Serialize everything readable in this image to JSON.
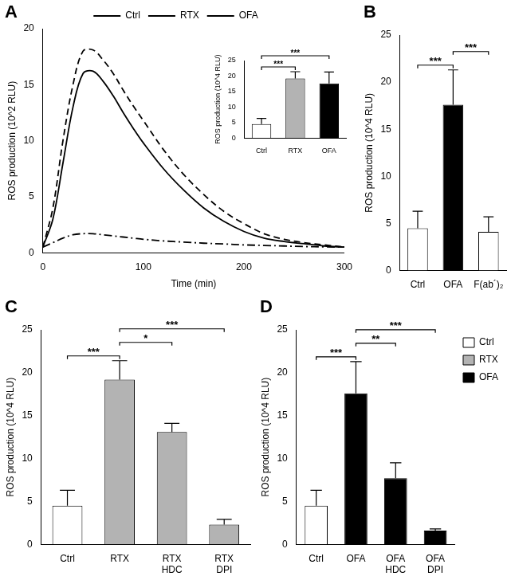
{
  "chart_data": [
    {
      "type": "line",
      "title": "A",
      "x_label": "Time (min)",
      "y_label": "ROS production (10^2 RLU)",
      "x": [
        0,
        10,
        20,
        30,
        40,
        50,
        60,
        70,
        80,
        90,
        100,
        120,
        140,
        160,
        180,
        200,
        220,
        240,
        260,
        280,
        300
      ],
      "series": [
        {
          "name": "Ctrl",
          "color": "#000000",
          "line_style": "dashdot",
          "values": [
            0.5,
            0.9,
            1.3,
            1.6,
            1.7,
            1.7,
            1.6,
            1.5,
            1.4,
            1.3,
            1.2,
            1.05,
            0.95,
            0.85,
            0.78,
            0.7,
            0.65,
            0.6,
            0.55,
            0.52,
            0.5
          ]
        },
        {
          "name": "RTX",
          "color": "#000000",
          "line_style": "solid",
          "values": [
            0.5,
            3.0,
            8.0,
            13.0,
            16.0,
            16.2,
            15.3,
            14.0,
            12.5,
            11.1,
            9.8,
            7.5,
            5.6,
            4.0,
            2.8,
            1.9,
            1.3,
            1.0,
            0.8,
            0.6,
            0.5
          ]
        },
        {
          "name": "OFA",
          "color": "#000000",
          "line_style": "dashed",
          "values": [
            0.5,
            4.0,
            10.0,
            15.0,
            18.0,
            18.1,
            17.2,
            16.0,
            14.5,
            13.1,
            11.8,
            9.2,
            7.0,
            5.2,
            3.7,
            2.6,
            1.7,
            1.2,
            0.9,
            0.7,
            0.5
          ]
        }
      ],
      "xlim": [
        0,
        300
      ],
      "xticks": [
        0,
        100,
        200,
        300
      ],
      "ylim": [
        0,
        20
      ],
      "yticks": [
        0,
        5,
        10,
        15,
        20
      ],
      "legend": "top",
      "grid": false
    },
    {
      "type": "bar",
      "y_label": "ROS production (10^4 RLU)",
      "categories": [
        "Ctrl",
        "RTX",
        "OFA"
      ],
      "values": [
        4.5,
        19.2,
        17.6
      ],
      "errors": [
        1.8,
        2.2,
        3.7
      ],
      "colors": [
        "#ffffff",
        "#b3b3b3",
        "#000000"
      ],
      "ylim": [
        0,
        25
      ],
      "yticks": [
        0,
        5,
        10,
        15,
        20,
        25
      ],
      "grid": false,
      "annotations": [
        {
          "between": [
            "Ctrl",
            "RTX"
          ],
          "text": "***"
        },
        {
          "between": [
            "Ctrl",
            "OFA"
          ],
          "text": "***"
        }
      ]
    },
    {
      "type": "bar",
      "title": "B",
      "y_label": "ROS production (10^4 RLU)",
      "categories": [
        "Ctrl",
        "OFA",
        "F(ab´)₂"
      ],
      "values": [
        4.5,
        17.6,
        4.1
      ],
      "errors": [
        1.8,
        3.7,
        1.6
      ],
      "colors": [
        "#ffffff",
        "#000000",
        "#ffffff"
      ],
      "ylim": [
        0,
        25
      ],
      "yticks": [
        0,
        5,
        10,
        15,
        20,
        25
      ],
      "grid": false,
      "annotations": [
        {
          "between": [
            "Ctrl",
            "OFA"
          ],
          "text": "***"
        },
        {
          "between": [
            "OFA",
            "F(ab´)₂"
          ],
          "text": "***"
        }
      ]
    },
    {
      "type": "bar",
      "title": "C",
      "y_label": "ROS production (10^4 RLU)",
      "categories": [
        "Ctrl",
        "RTX",
        "RTX HDC",
        "RTX DPI"
      ],
      "values": [
        4.5,
        19.2,
        13.1,
        2.3
      ],
      "errors": [
        1.8,
        2.2,
        1.0,
        0.6
      ],
      "colors": [
        "#ffffff",
        "#b3b3b3",
        "#b3b3b3",
        "#b3b3b3"
      ],
      "ylim": [
        0,
        25
      ],
      "yticks": [
        0,
        5,
        10,
        15,
        20,
        25
      ],
      "grid": false,
      "annotations": [
        {
          "between": [
            "Ctrl",
            "RTX"
          ],
          "text": "***"
        },
        {
          "between": [
            "RTX",
            "RTX HDC"
          ],
          "text": "*"
        },
        {
          "between": [
            "RTX",
            "RTX DPI"
          ],
          "text": "***"
        }
      ]
    },
    {
      "type": "bar",
      "title": "D",
      "y_label": "ROS production (10^4 RLU)",
      "categories": [
        "Ctrl",
        "OFA",
        "OFA HDC",
        "OFA DPI"
      ],
      "series": [
        {
          "name": "Ctrl",
          "color": "#ffffff",
          "values": [
            4.5,
            null,
            null,
            null
          ],
          "errors": [
            1.8,
            null,
            null,
            null
          ]
        },
        {
          "name": "RTX",
          "color": "#b3b3b3",
          "values": [
            null,
            null,
            null,
            null
          ],
          "errors": [
            null,
            null,
            null,
            null
          ]
        },
        {
          "name": "OFA",
          "color": "#000000",
          "values": [
            null,
            17.6,
            7.7,
            1.6
          ],
          "errors": [
            null,
            3.7,
            1.8,
            0.2
          ]
        }
      ],
      "ylim": [
        0,
        25
      ],
      "yticks": [
        0,
        5,
        10,
        15,
        20,
        25
      ],
      "grid": false,
      "legend": "top-right",
      "annotations": [
        {
          "between": [
            "Ctrl",
            "OFA"
          ],
          "text": "***"
        },
        {
          "between": [
            "OFA",
            "OFA HDC"
          ],
          "text": "**"
        },
        {
          "between": [
            "OFA",
            "OFA DPI"
          ],
          "text": "***"
        }
      ]
    }
  ]
}
